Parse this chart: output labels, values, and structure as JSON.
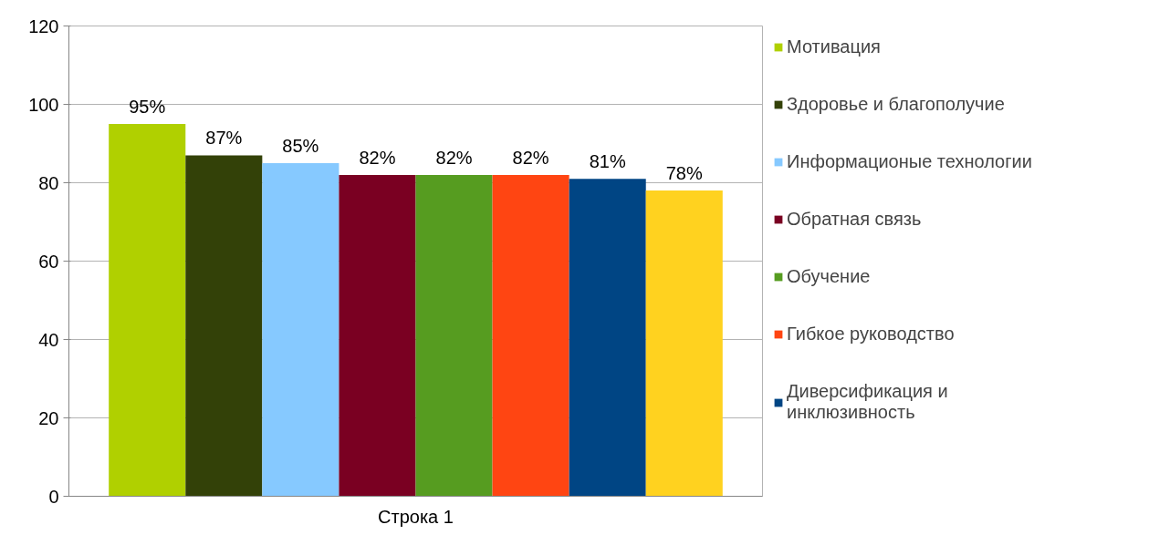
{
  "chart_data": {
    "type": "bar",
    "categories": [
      "Строка 1"
    ],
    "series": [
      {
        "name": "Мотивация",
        "color": "#b0d000",
        "values": [
          95
        ],
        "value_labels": [
          "95%"
        ]
      },
      {
        "name": "Здоровье и благополучие",
        "color": "#334108",
        "values": [
          87
        ],
        "value_labels": [
          "87%"
        ]
      },
      {
        "name": "Информационые технологии",
        "color": "#86c9ff",
        "values": [
          85
        ],
        "value_labels": [
          "85%"
        ]
      },
      {
        "name": "Обратная связь",
        "color": "#7a0022",
        "values": [
          82
        ],
        "value_labels": [
          "82%"
        ]
      },
      {
        "name": "Обучение",
        "color": "#569c20",
        "values": [
          82
        ],
        "value_labels": [
          "82%"
        ]
      },
      {
        "name": "Гибкое руководство",
        "color": "#ff4512",
        "values": [
          82
        ],
        "value_labels": [
          "82%"
        ]
      },
      {
        "name": "Диверсификация и\nинклюзивность",
        "color": "#004584",
        "values": [
          81
        ],
        "value_labels": [
          "81%"
        ]
      },
      {
        "color": "#ffd21f",
        "values": [
          78
        ],
        "value_labels": [
          "78%"
        ]
      }
    ],
    "ylim": [
      0,
      120
    ],
    "yticks": [
      0,
      20,
      40,
      60,
      80,
      100,
      120
    ],
    "grid": "y",
    "legend": "right"
  }
}
